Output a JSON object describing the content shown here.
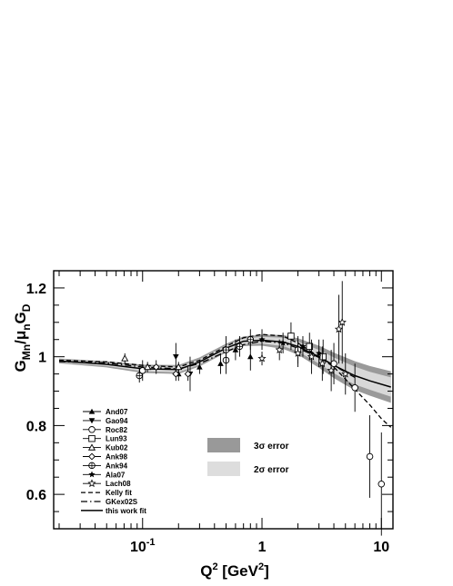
{
  "chart_data": {
    "type": "scatter",
    "title": "",
    "ylabel": {
      "base": "G",
      "sub1": "Mn",
      "mid": "/μ",
      "sub2": "n",
      "tail": "G",
      "sub3": "D"
    },
    "xlabel": {
      "base": "Q",
      "sup": "2",
      "mid": " [GeV",
      "sup2": "2",
      "tail": "]"
    },
    "x_scale": "log",
    "xlim": [
      0.018,
      12.5
    ],
    "ylim": [
      0.5,
      1.25
    ],
    "x_ticks": [
      {
        "value": 0.1,
        "base": "10",
        "exp": "-1"
      },
      {
        "value": 1,
        "base": "1",
        "exp": ""
      },
      {
        "value": 10,
        "base": "10",
        "exp": ""
      }
    ],
    "y_ticks": [
      {
        "value": 0.6,
        "label": "0.6"
      },
      {
        "value": 0.8,
        "label": "0.8"
      },
      {
        "value": 1.0,
        "label": "1"
      },
      {
        "value": 1.2,
        "label": "1.2"
      }
    ],
    "legend_position": "bottom-left",
    "legend": [
      {
        "name": "And07",
        "marker": "triangle-filled"
      },
      {
        "name": "Gao94",
        "marker": "triangle-down-filled"
      },
      {
        "name": "Roc82",
        "marker": "circle-open"
      },
      {
        "name": "Lun93",
        "marker": "square-open"
      },
      {
        "name": "Kub02",
        "marker": "triangle-open"
      },
      {
        "name": "Ank98",
        "marker": "diamond-open"
      },
      {
        "name": "Ank94",
        "marker": "circle-cross"
      },
      {
        "name": "Ala07",
        "marker": "star-filled"
      },
      {
        "name": "Lach08",
        "marker": "star-open"
      },
      {
        "name": "Kelly fit",
        "line": "dashed"
      },
      {
        "name": "GKex02S",
        "line": "dashdot"
      },
      {
        "name": "this work fit",
        "line": "solid"
      }
    ],
    "band_legend": [
      {
        "name_base": "3",
        "name_sym": "σ",
        "name_rest": " error",
        "color": "#999999"
      },
      {
        "name_base": "2",
        "name_sym": "σ",
        "name_rest": " error",
        "color": "#dddddd"
      }
    ],
    "colors": {
      "band3": "#9a9a9a",
      "band2": "#d8d8d8",
      "ink": "#000000"
    },
    "bands": {
      "x": [
        0.02,
        0.05,
        0.1,
        0.2,
        0.3,
        0.5,
        0.7,
        1.0,
        1.5,
        2.0,
        3.0,
        4.0,
        5.0,
        6.0,
        8.0,
        12.0
      ],
      "center": [
        0.988,
        0.978,
        0.965,
        0.963,
        0.985,
        1.025,
        1.045,
        1.048,
        1.043,
        1.03,
        1.0,
        0.975,
        0.958,
        0.945,
        0.93,
        0.912
      ],
      "w2": [
        0.004,
        0.005,
        0.007,
        0.008,
        0.008,
        0.008,
        0.008,
        0.01,
        0.012,
        0.014,
        0.02,
        0.023,
        0.025,
        0.026,
        0.026,
        0.028
      ],
      "w3": [
        0.007,
        0.009,
        0.012,
        0.013,
        0.013,
        0.013,
        0.014,
        0.016,
        0.02,
        0.024,
        0.032,
        0.037,
        0.04,
        0.042,
        0.043,
        0.046
      ]
    },
    "fits": [
      {
        "name": "Kelly fit",
        "style": "dashed",
        "x": [
          0.02,
          0.05,
          0.1,
          0.2,
          0.3,
          0.5,
          0.7,
          1.0,
          1.5,
          2.0,
          3.0,
          4.0,
          5.0,
          6.0,
          8.0,
          10.0,
          12.0
        ],
        "y": [
          0.99,
          0.985,
          0.975,
          0.97,
          0.99,
          1.03,
          1.055,
          1.065,
          1.06,
          1.04,
          1.0,
          0.97,
          0.935,
          0.905,
          0.86,
          0.82,
          0.795
        ]
      },
      {
        "name": "GKex02S",
        "style": "dashdot",
        "x": [
          0.02,
          0.05,
          0.1,
          0.2,
          0.3,
          0.5,
          0.7,
          1.0,
          1.5,
          2.0,
          3.0,
          4.0,
          5.0,
          6.0
        ],
        "y": [
          0.986,
          0.982,
          0.97,
          0.965,
          0.98,
          1.015,
          1.035,
          1.045,
          1.04,
          1.025,
          0.998,
          0.975,
          0.955,
          0.94
        ]
      },
      {
        "name": "this work fit",
        "style": "solid",
        "x": [
          0.02,
          0.05,
          0.1,
          0.2,
          0.3,
          0.5,
          0.7,
          1.0,
          1.5,
          2.0,
          3.0,
          4.0,
          5.0,
          6.0,
          8.0,
          12.0
        ],
        "y": [
          0.988,
          0.978,
          0.965,
          0.963,
          0.985,
          1.025,
          1.045,
          1.048,
          1.043,
          1.03,
          1.0,
          0.975,
          0.958,
          0.945,
          0.93,
          0.912
        ]
      }
    ],
    "series": [
      {
        "name": "And07",
        "marker": "triangle-filled",
        "points": [
          {
            "x": 0.2,
            "y": 0.95,
            "err": 0.02
          },
          {
            "x": 0.3,
            "y": 0.97,
            "err": 0.02
          },
          {
            "x": 0.45,
            "y": 0.98,
            "err": 0.03
          },
          {
            "x": 0.6,
            "y": 1.02,
            "err": 0.03
          },
          {
            "x": 0.8,
            "y": 1.0,
            "err": 0.04
          }
        ]
      },
      {
        "name": "Gao94",
        "marker": "triangle-down-filled",
        "points": [
          {
            "x": 0.19,
            "y": 1.0,
            "err": 0.04
          },
          {
            "x": 0.25,
            "y": 0.95,
            "err": 0.05
          }
        ]
      },
      {
        "name": "Roc82",
        "marker": "circle-open",
        "points": [
          {
            "x": 0.1,
            "y": 0.96,
            "err": 0.03
          },
          {
            "x": 0.5,
            "y": 0.99,
            "err": 0.04
          },
          {
            "x": 2.0,
            "y": 1.02,
            "err": 0.04
          },
          {
            "x": 4.0,
            "y": 0.98,
            "err": 0.06
          },
          {
            "x": 6.0,
            "y": 0.91,
            "err": 0.07
          },
          {
            "x": 8.0,
            "y": 0.71,
            "err": 0.12
          },
          {
            "x": 10.0,
            "y": 0.63,
            "err": 0.15
          }
        ]
      },
      {
        "name": "Lun93",
        "marker": "square-open",
        "points": [
          {
            "x": 1.75,
            "y": 1.06,
            "err": 0.04
          },
          {
            "x": 2.5,
            "y": 1.03,
            "err": 0.04
          },
          {
            "x": 3.25,
            "y": 1.0,
            "err": 0.05
          }
        ]
      },
      {
        "name": "Kub02",
        "marker": "triangle-open",
        "points": [
          {
            "x": 0.071,
            "y": 0.995,
            "err": 0.015
          },
          {
            "x": 0.11,
            "y": 0.97,
            "err": 0.015
          },
          {
            "x": 0.2,
            "y": 0.97,
            "err": 0.015
          }
        ]
      },
      {
        "name": "Ank98",
        "marker": "diamond-open",
        "points": [
          {
            "x": 0.13,
            "y": 0.97,
            "err": 0.02
          },
          {
            "x": 0.19,
            "y": 0.95,
            "err": 0.02
          },
          {
            "x": 0.24,
            "y": 0.95,
            "err": 0.02
          }
        ]
      },
      {
        "name": "Ank94",
        "marker": "circle-cross",
        "points": [
          {
            "x": 0.094,
            "y": 0.945,
            "err": 0.02
          },
          {
            "x": 0.5,
            "y": 1.02,
            "err": 0.04
          },
          {
            "x": 0.65,
            "y": 1.03,
            "err": 0.03
          },
          {
            "x": 0.8,
            "y": 1.05,
            "err": 0.03
          }
        ]
      },
      {
        "name": "Ala07",
        "marker": "star-filled",
        "points": [
          {
            "x": 1.0,
            "y": 1.05,
            "err": 0.03
          },
          {
            "x": 1.5,
            "y": 1.04,
            "err": 0.03
          },
          {
            "x": 2.2,
            "y": 1.03,
            "err": 0.03
          },
          {
            "x": 3.0,
            "y": 1.01,
            "err": 0.04
          }
        ]
      },
      {
        "name": "Lach08",
        "marker": "star-open",
        "points": [
          {
            "x": 1.0,
            "y": 0.995,
            "err": 0.02
          },
          {
            "x": 1.4,
            "y": 1.02,
            "err": 0.03
          },
          {
            "x": 2.0,
            "y": 1.01,
            "err": 0.04
          },
          {
            "x": 2.6,
            "y": 1.0,
            "err": 0.05
          },
          {
            "x": 3.2,
            "y": 0.98,
            "err": 0.05
          },
          {
            "x": 3.8,
            "y": 0.96,
            "err": 0.06
          },
          {
            "x": 4.4,
            "y": 1.08,
            "err": 0.1
          },
          {
            "x": 4.7,
            "y": 1.1,
            "err": 0.12
          },
          {
            "x": 5.0,
            "y": 0.95,
            "err": 0.06
          }
        ]
      }
    ]
  }
}
